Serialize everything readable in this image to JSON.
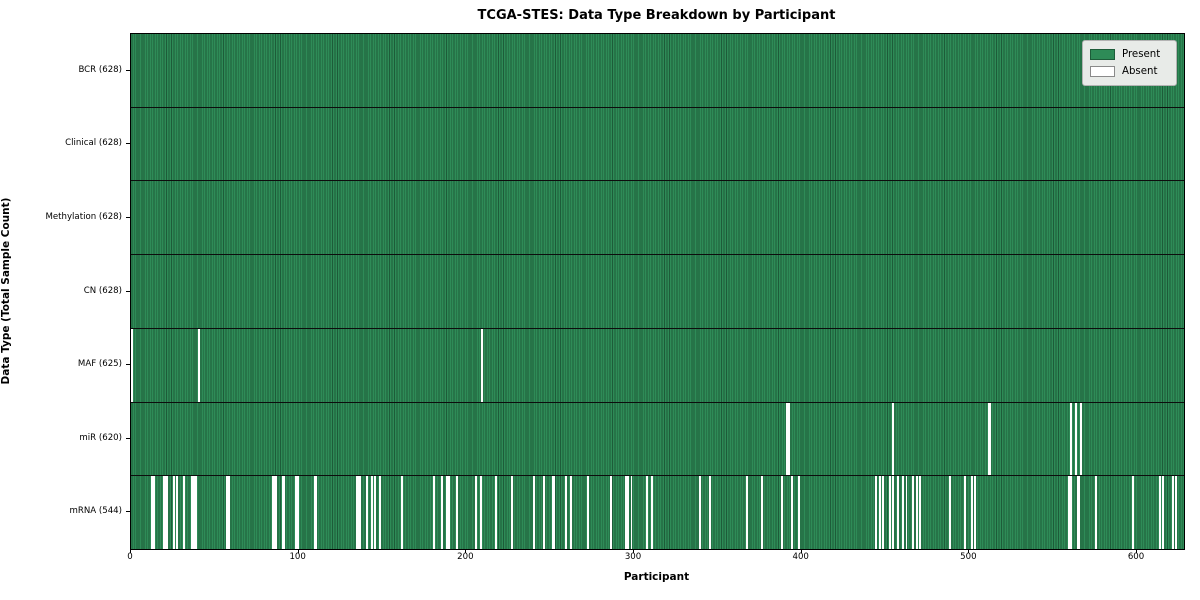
{
  "chart_data": {
    "type": "heatmap",
    "title": "TCGA-STES: Data Type Breakdown by Participant",
    "xlabel": "Participant",
    "ylabel": "Data Type (Total Sample Count)",
    "n_participants": 628,
    "xlim": [
      0,
      628
    ],
    "x_ticks": [
      0,
      100,
      200,
      300,
      400,
      500,
      600
    ],
    "grid": false,
    "legend": {
      "position": "upper right",
      "present_label": "Present",
      "absent_label": "Absent"
    },
    "colors": {
      "present": "#2e8b57",
      "present_edge": "#1d5c39",
      "absent": "#ffffff",
      "axes_edge": "#000000",
      "row_divider": "#0d0d0d",
      "legend_bg": "#e8ebe8",
      "legend_border": "#b3b3b3"
    },
    "rows": [
      {
        "name": "BCR",
        "count": 628,
        "label": "BCR (628)",
        "absent": []
      },
      {
        "name": "Clinical",
        "count": 628,
        "label": "Clinical (628)",
        "absent": []
      },
      {
        "name": "Methylation",
        "count": 628,
        "label": "Methylation (628)",
        "absent": []
      },
      {
        "name": "CN",
        "count": 628,
        "label": "CN (628)",
        "absent": []
      },
      {
        "name": "MAF",
        "count": 625,
        "label": "MAF (625)",
        "absent": [
          0,
          40,
          209
        ]
      },
      {
        "name": "miR",
        "count": 620,
        "label": "miR (620)",
        "absent": [
          391,
          392,
          454,
          511,
          512,
          560,
          563,
          566
        ]
      },
      {
        "name": "mRNA",
        "count": 544,
        "label": "mRNA (544)",
        "absent": [
          12,
          13,
          19,
          20,
          21,
          25,
          27,
          31,
          36,
          37,
          38,
          57,
          58,
          84,
          85,
          86,
          90,
          91,
          98,
          99,
          109,
          110,
          134,
          135,
          136,
          140,
          143,
          145,
          148,
          161,
          180,
          185,
          188,
          189,
          194,
          205,
          208,
          217,
          227,
          240,
          246,
          251,
          252,
          259,
          262,
          272,
          286,
          295,
          296,
          298,
          307,
          310,
          339,
          345,
          367,
          376,
          388,
          394,
          398,
          444,
          446,
          448,
          452,
          454,
          457,
          460,
          462,
          466,
          468,
          470,
          488,
          497,
          501,
          503,
          559,
          560,
          564,
          565,
          575,
          597,
          613,
          615,
          621,
          623
        ]
      }
    ]
  }
}
